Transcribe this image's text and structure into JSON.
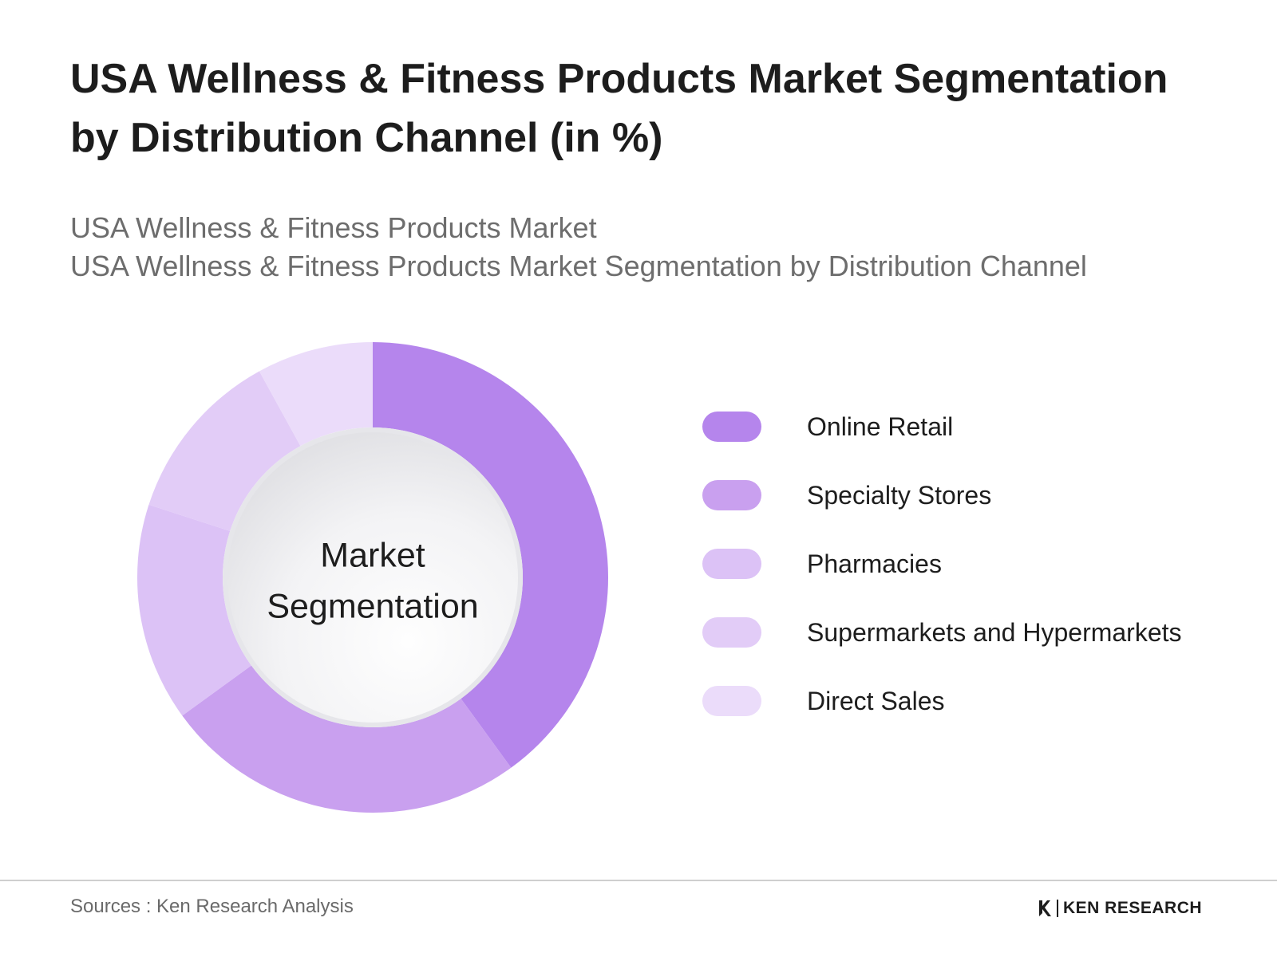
{
  "header": {
    "title": "USA Wellness & Fitness Products Market Segmentation by Distribution Channel (in %)",
    "subtitle_line1": "USA Wellness & Fitness Products Market",
    "subtitle_line2": "USA Wellness & Fitness Products Market Segmentation by Distribution Channel"
  },
  "chart_data": {
    "type": "pie",
    "variant": "donut",
    "center_label_line1": "Market",
    "center_label_line2": "Segmentation",
    "categories": [
      "Online Retail",
      "Specialty Stores",
      "Pharmacies",
      "Supermarkets and Hypermarkets",
      "Direct Sales"
    ],
    "values": [
      40,
      25,
      15,
      12,
      8
    ],
    "colors": [
      "#b585ec",
      "#c9a0ef",
      "#dcc2f6",
      "#e2ccf7",
      "#ebdcfa"
    ],
    "legend_position": "right"
  },
  "footer": {
    "source": "Sources : Ken Research Analysis",
    "logo_text": "KEN RESEARCH"
  }
}
